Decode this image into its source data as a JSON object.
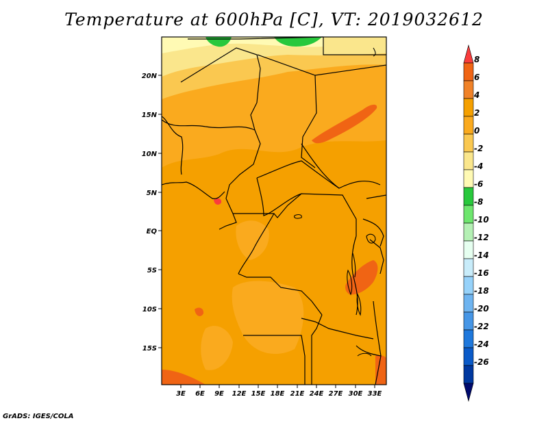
{
  "title": "Temperature at 600hPa [C], VT: 2019032612",
  "credit": "GrADS: IGES/COLA",
  "lat_labels": [
    "20N",
    "15N",
    "10N",
    "5N",
    "EQ",
    "5S",
    "10S",
    "15S"
  ],
  "lon_labels": [
    "3E",
    "6E",
    "9E",
    "12E",
    "15E",
    "18E",
    "21E",
    "24E",
    "27E",
    "30E",
    "33E"
  ],
  "colorbar": {
    "labels": [
      "8",
      "6",
      "4",
      "2",
      "0",
      "-2",
      "-4",
      "-6",
      "-8",
      "-10",
      "-12",
      "-14",
      "-16",
      "-18",
      "-20",
      "-22",
      "-24",
      "-26"
    ],
    "colors": [
      "#fa3c3c",
      "#f06414",
      "#f08228",
      "#f5a000",
      "#faaa1e",
      "#fac850",
      "#fae68c",
      "#fffab4",
      "#28c83c",
      "#6ee66e",
      "#b4f0b4",
      "#e6fff0",
      "#c8ecfa",
      "#96d2fa",
      "#6eb4f0",
      "#4696e6",
      "#1e78dc",
      "#0a5ac8",
      "#0038a0",
      "#000a6e"
    ]
  },
  "chart_data": {
    "type": "heatmap",
    "variable": "Temperature at 600hPa",
    "units": "C",
    "valid_time": "2019032612",
    "x_range": [
      "0E",
      "34.5E"
    ],
    "y_range": [
      "19.5S",
      "25N"
    ],
    "color_levels": [
      -26,
      -24,
      -22,
      -20,
      -18,
      -16,
      -14,
      -12,
      -10,
      -8,
      -6,
      -4,
      -2,
      0,
      2,
      4,
      6,
      8
    ],
    "field_summary": [
      {
        "region": "north edge (~22-25N)",
        "approx_value_range": [
          -4,
          -2
        ]
      },
      {
        "region": "small pockets on north edge",
        "approx_value_range": [
          -6,
          -4
        ]
      },
      {
        "region": "Sahel band (~10-20N)",
        "approx_value_range": [
          0,
          2
        ]
      },
      {
        "region": "central Africa and Gulf of Guinea",
        "approx_value_range": [
          2,
          4
        ]
      },
      {
        "region": "Sudan streak (~13-15N, 25-30E)",
        "approx_value_range": [
          4,
          6
        ]
      },
      {
        "region": "Lake Tanganyika area (~5-8S, 29-31E)",
        "approx_value_range": [
          4,
          6
        ]
      },
      {
        "region": "southwest Atlantic corner",
        "approx_value_range": [
          4,
          6
        ]
      }
    ]
  }
}
